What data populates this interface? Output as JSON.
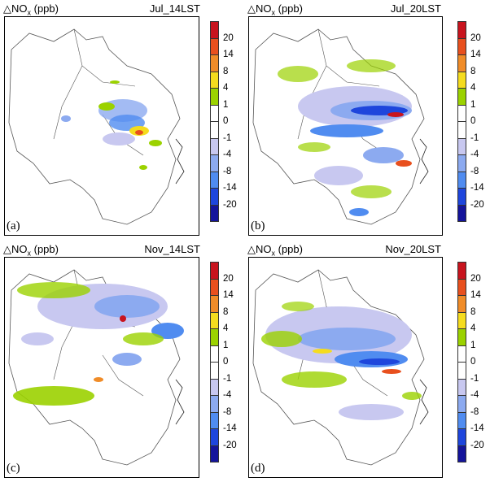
{
  "panels": [
    {
      "id": "a",
      "var_label": "△NO",
      "var_sub": "x",
      "unit": " (ppb)",
      "time": "Jul_14LST",
      "panel_label": "(a)"
    },
    {
      "id": "b",
      "var_label": "△NO",
      "var_sub": "x",
      "unit": " (ppb)",
      "time": "Jul_20LST",
      "panel_label": "(b)"
    },
    {
      "id": "c",
      "var_label": "△NO",
      "var_sub": "x",
      "unit": " (ppb)",
      "time": "Nov_14LST",
      "panel_label": "(c)"
    },
    {
      "id": "d",
      "var_label": "△NO",
      "var_sub": "x",
      "unit": " (ppb)",
      "time": "Nov_20LST",
      "panel_label": "(d)"
    }
  ],
  "colorbar": {
    "labels": [
      "20",
      "14",
      "8",
      "4",
      "1",
      "0",
      "-1",
      "-4",
      "-8",
      "-14",
      "-20"
    ],
    "colors": [
      "#c8141e",
      "#e8501e",
      "#f08c28",
      "#f5dc1e",
      "#9bd200",
      "#ffffff",
      "#ffffff",
      "#c8c8f0",
      "#8caaf0",
      "#508cf0",
      "#1e46dc",
      "#14149b"
    ]
  }
}
